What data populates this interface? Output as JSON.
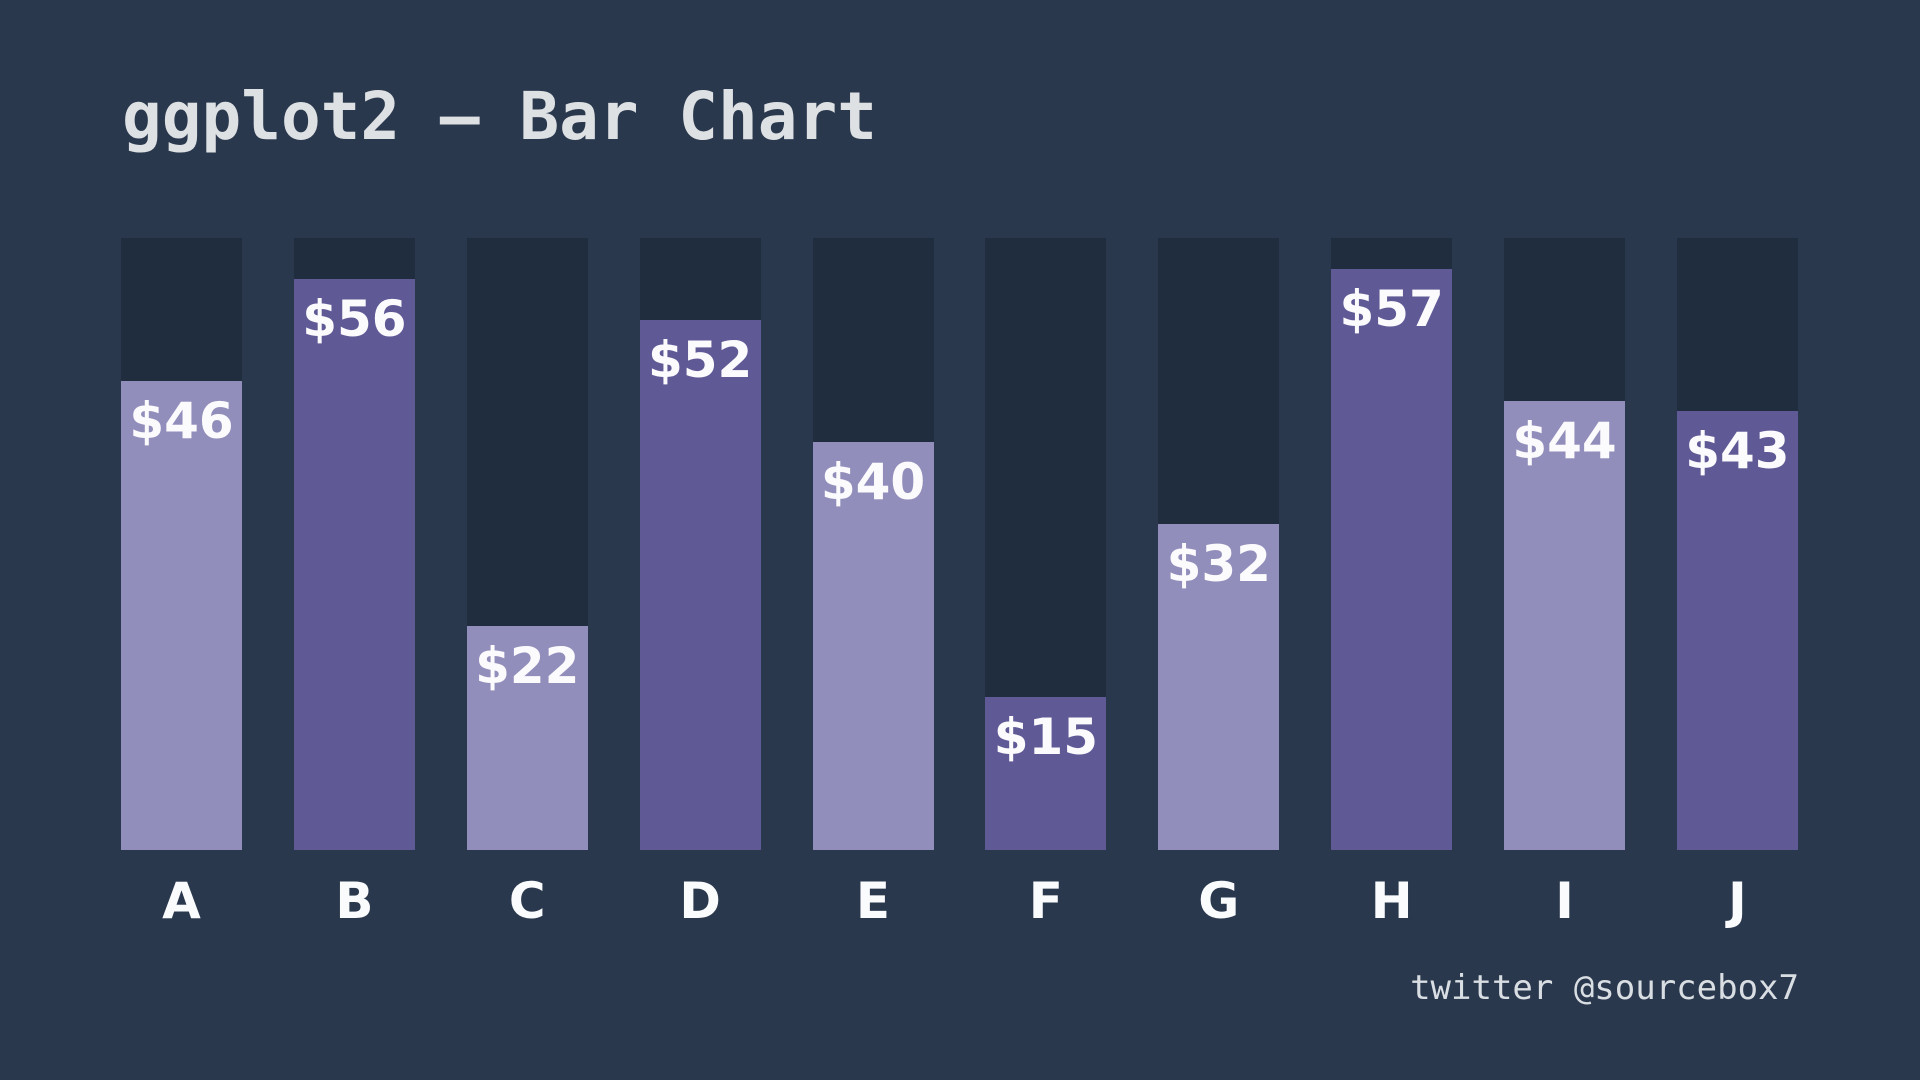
{
  "title": "ggplot2 — Bar Chart",
  "footer": {
    "credit": "twitter @sourcebox7"
  },
  "colors": {
    "background": "#2A384E",
    "bar_track": "#1F2D3E",
    "bar_light": "#928EBB",
    "bar_dark": "#5F5996",
    "title_text": "#DEE1E3",
    "label_text": "#FBFAFC",
    "credit_text": "#D9DEE3"
  },
  "chart_data": {
    "type": "bar",
    "title": "ggplot2 — Bar Chart",
    "categories": [
      "A",
      "B",
      "C",
      "D",
      "E",
      "F",
      "G",
      "H",
      "I",
      "J"
    ],
    "values": [
      46,
      56,
      22,
      52,
      40,
      15,
      32,
      57,
      44,
      43
    ],
    "value_labels": [
      "$46",
      "$56",
      "$22",
      "$52",
      "$40",
      "$15",
      "$32",
      "$57",
      "$44",
      "$43"
    ],
    "bar_colors": [
      "#928EBB",
      "#5F5996",
      "#928EBB",
      "#5F5996",
      "#928EBB",
      "#5F5996",
      "#928EBB",
      "#5F5996",
      "#928EBB",
      "#5F5996"
    ],
    "xlabel": "",
    "ylabel": "",
    "ylim": [
      0,
      60
    ],
    "grid": false,
    "legend": false,
    "track_background": true
  }
}
